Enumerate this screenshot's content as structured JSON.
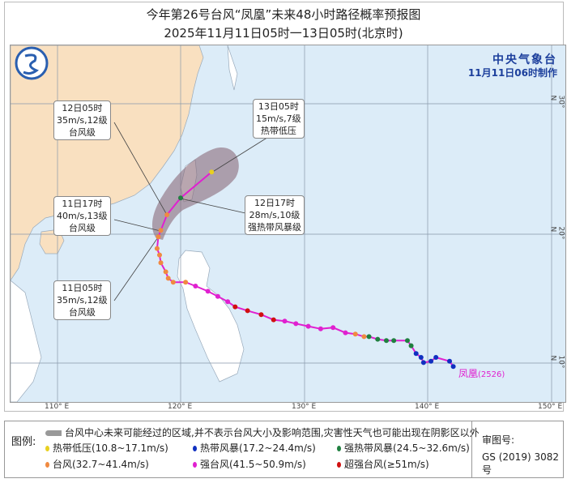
{
  "header": {
    "title": "今年第26号台风“凤凰”未来48小时路径概率预报图",
    "subtitle": "2025年11月11日05时一13日05时(北京时)"
  },
  "agency": {
    "name": "中央气象台",
    "issued": "11月11日06时制作"
  },
  "map": {
    "lon_ticks": [
      "110° E",
      "120° E",
      "130° E",
      "140° E",
      "150° E"
    ],
    "lat_ticks": [
      "30° N",
      "20° N",
      "10° N"
    ],
    "storm_label": "凤凰",
    "storm_id": "(2526)",
    "colors": {
      "sea": "#dcecf8",
      "land": "#f9e0c0",
      "cone": "#8a6a7a",
      "track": "#e020d0",
      "TD": "#e8d020",
      "TS": "#1030c0",
      "STS": "#208040",
      "TY": "#f08a40",
      "STY": "#e020d0",
      "SuperTY": "#d01010"
    },
    "track": [
      {
        "lon": 142.0,
        "lat": 9.8,
        "cat": "TS"
      },
      {
        "lon": 141.7,
        "lat": 10.2,
        "cat": "TS"
      },
      {
        "lon": 140.6,
        "lat": 10.5,
        "cat": "TS"
      },
      {
        "lon": 140.2,
        "lat": 10.2,
        "cat": "TS"
      },
      {
        "lon": 139.6,
        "lat": 10.1,
        "cat": "TS"
      },
      {
        "lon": 139.4,
        "lat": 10.5,
        "cat": "TS"
      },
      {
        "lon": 139.0,
        "lat": 10.8,
        "cat": "TS"
      },
      {
        "lon": 138.6,
        "lat": 11.4,
        "cat": "STS"
      },
      {
        "lon": 138.3,
        "lat": 11.8,
        "cat": "STS"
      },
      {
        "lon": 137.2,
        "lat": 11.8,
        "cat": "STS"
      },
      {
        "lon": 136.6,
        "lat": 11.8,
        "cat": "STS"
      },
      {
        "lon": 135.9,
        "lat": 11.9,
        "cat": "STS"
      },
      {
        "lon": 135.2,
        "lat": 12.1,
        "cat": "STS"
      },
      {
        "lon": 134.8,
        "lat": 12.1,
        "cat": "TY"
      },
      {
        "lon": 134.1,
        "lat": 12.3,
        "cat": "TY"
      },
      {
        "lon": 133.3,
        "lat": 12.4,
        "cat": "STY"
      },
      {
        "lon": 132.3,
        "lat": 12.8,
        "cat": "STY"
      },
      {
        "lon": 131.3,
        "lat": 12.7,
        "cat": "STY"
      },
      {
        "lon": 130.3,
        "lat": 12.9,
        "cat": "STY"
      },
      {
        "lon": 129.3,
        "lat": 13.1,
        "cat": "STY"
      },
      {
        "lon": 128.4,
        "lat": 13.3,
        "cat": "STY"
      },
      {
        "lon": 127.5,
        "lat": 13.4,
        "cat": "SuperTY"
      },
      {
        "lon": 126.5,
        "lat": 13.8,
        "cat": "SuperTY"
      },
      {
        "lon": 125.4,
        "lat": 14.1,
        "cat": "SuperTY"
      },
      {
        "lon": 124.4,
        "lat": 14.4,
        "cat": "SuperTY"
      },
      {
        "lon": 123.8,
        "lat": 14.8,
        "cat": "STY"
      },
      {
        "lon": 123.0,
        "lat": 15.2,
        "cat": "STY"
      },
      {
        "lon": 122.2,
        "lat": 15.6,
        "cat": "STY"
      },
      {
        "lon": 121.2,
        "lat": 16.0,
        "cat": "STY"
      },
      {
        "lon": 120.4,
        "lat": 16.3,
        "cat": "TY"
      },
      {
        "lon": 119.4,
        "lat": 16.3,
        "cat": "TY"
      },
      {
        "lon": 119.0,
        "lat": 16.6,
        "cat": "TY"
      },
      {
        "lon": 118.8,
        "lat": 17.1,
        "cat": "TY"
      },
      {
        "lon": 118.4,
        "lat": 17.8,
        "cat": "TY"
      },
      {
        "lon": 118.3,
        "lat": 18.4,
        "cat": "TY"
      },
      {
        "lon": 118.1,
        "lat": 18.9,
        "cat": "TY"
      },
      {
        "lon": 118.2,
        "lat": 19.8,
        "cat": "TY"
      }
    ],
    "forecast": [
      {
        "lon": 118.4,
        "lat": 20.3,
        "cat": "TY",
        "time": "11日05时",
        "wind": "35m/s,12级",
        "level": "台风级"
      },
      {
        "lon": 118.9,
        "lat": 21.5,
        "cat": "TY",
        "time": "11日17时",
        "wind": "40m/s,13级",
        "level": "台风级"
      },
      {
        "lon": 120.0,
        "lat": 22.8,
        "cat": "STS",
        "time": "12日17时",
        "wind": "28m/s,10级",
        "level": "强热带风暴级"
      },
      {
        "lon": 122.5,
        "lat": 24.8,
        "cat": "TD",
        "time": "13日05时",
        "wind": "15m/s,7级",
        "level": "热带低压"
      }
    ],
    "extra_box": {
      "time": "12日05时",
      "wind": "35m/s,12级",
      "level": "台风级"
    }
  },
  "legend": {
    "title": "图例:",
    "cone_text": "台风中心未来可能经过的区域,并不表示台风大小及影响范围,灾害性天气也可能出现在阴影区以外",
    "items": [
      {
        "label": "热带低压(10.8~17.1m/s)",
        "color": "#e8d020"
      },
      {
        "label": "热带风暴(17.2~24.4m/s)",
        "color": "#1030c0"
      },
      {
        "label": "强热带风暴(24.5~32.6m/s)",
        "color": "#208040"
      },
      {
        "label": "台风(32.7~41.4m/s)",
        "color": "#f08a40"
      },
      {
        "label": "强台风(41.5~50.9m/s)",
        "color": "#e020d0"
      },
      {
        "label": "超强台风(≥51m/s)",
        "color": "#d01010"
      }
    ],
    "approval_label": "审图号:",
    "approval_no": "GS (2019) 3082号"
  }
}
